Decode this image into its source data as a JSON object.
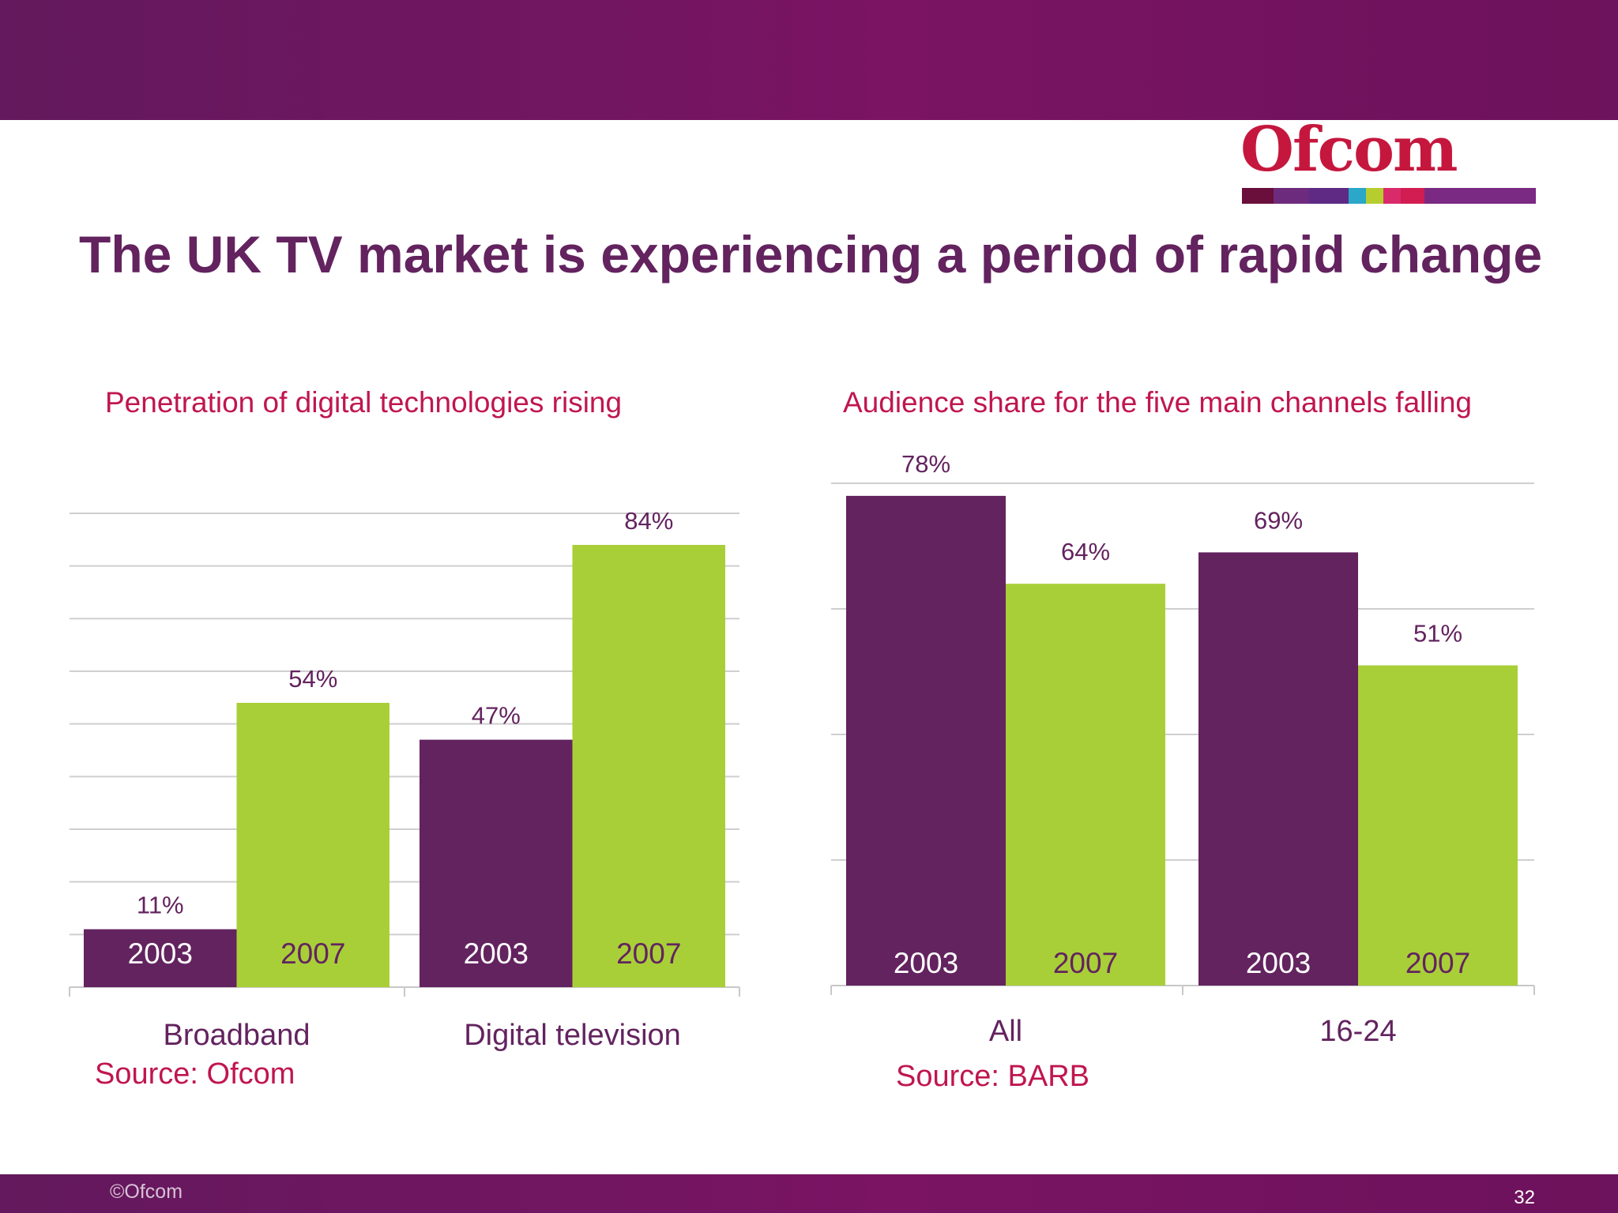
{
  "slide": {
    "title": "The UK TV market is experiencing a period of rapid change",
    "logo_text": "Ofcom",
    "footer_text": "©Ofcom",
    "page_number": "32",
    "colors": {
      "band": "#6d125c",
      "purple": "#63235f",
      "green": "#a8cf38",
      "accent_red": "#c0164e"
    },
    "logo_bar_colors": [
      "#6a0e3b",
      "#6d2b7d",
      "#5e2a84",
      "#2aa7c9",
      "#b7cd2f",
      "#d92b6a",
      "#d21d52",
      "#7a2a83",
      "#7a2a83"
    ]
  },
  "chart_data": [
    {
      "type": "bar",
      "title": "Penetration of digital technologies rising",
      "categories": [
        "Broadband",
        "Digital television"
      ],
      "series": [
        {
          "name": "2003",
          "values": [
            11,
            47
          ],
          "value_labels": [
            "11%",
            "47%"
          ]
        },
        {
          "name": "2007",
          "values": [
            54,
            84
          ],
          "value_labels": [
            "54%",
            "84%"
          ]
        }
      ],
      "ylim": [
        0,
        90
      ],
      "grid": true,
      "source": "Source: Ofcom"
    },
    {
      "type": "bar",
      "title": "Audience share for the five main channels falling",
      "categories": [
        "All",
        "16-24"
      ],
      "series": [
        {
          "name": "2003",
          "values": [
            78,
            69
          ],
          "value_labels": [
            "78%",
            "69%"
          ]
        },
        {
          "name": "2007",
          "values": [
            64,
            51
          ],
          "value_labels": [
            "64%",
            "51%"
          ]
        }
      ],
      "ylim": [
        0,
        80
      ],
      "grid": true,
      "source": "Source: BARB"
    }
  ]
}
